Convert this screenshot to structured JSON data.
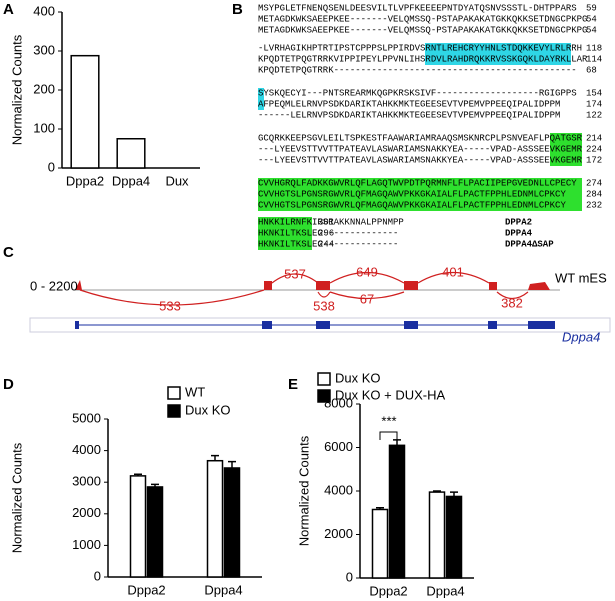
{
  "panel_labels": [
    "A",
    "B",
    "C",
    "D",
    "E"
  ],
  "chart_data": [
    {
      "type": "bar",
      "ylabel": "Normalized Counts",
      "categories": [
        "Dppa2",
        "Dppa4",
        "Dux"
      ],
      "series": [
        {
          "color": "#ffffff",
          "values": [
            288,
            75,
            0
          ]
        }
      ],
      "ylim": [
        0,
        400
      ],
      "yticks": [
        0,
        100,
        200,
        300,
        400
      ]
    },
    {
      "type": "bar",
      "ylabel": "Normalized Counts",
      "categories": [
        "Dppa2",
        "Dppa4"
      ],
      "series": [
        {
          "name": "WT",
          "color": "#ffffff",
          "values": [
            3200,
            3680
          ],
          "errors": [
            50,
            160
          ]
        },
        {
          "name": "Dux KO",
          "color": "#000000",
          "values": [
            2850,
            3450
          ],
          "errors": [
            80,
            200
          ]
        }
      ],
      "ylim": [
        0,
        5000
      ],
      "yticks": [
        0,
        1000,
        2000,
        3000,
        4000,
        5000
      ],
      "legend": "top-right"
    },
    {
      "type": "bar",
      "ylabel": "Normalized Counts",
      "categories": [
        "Dppa2",
        "Dppa4"
      ],
      "series": [
        {
          "name": "Dux KO",
          "color": "#ffffff",
          "values": [
            3150,
            3950
          ],
          "errors": [
            80,
            50
          ]
        },
        {
          "name": "Dux KO + DUX-HA",
          "color": "#000000",
          "values": [
            6100,
            3750
          ],
          "errors": [
            250,
            200
          ]
        }
      ],
      "ylim": [
        0,
        8000
      ],
      "yticks": [
        0,
        2000,
        4000,
        6000,
        8000
      ],
      "legend": "top-left",
      "annotation": "***"
    }
  ],
  "alignment": {
    "blocks": [
      [
        {
          "seq": "MSYPGLETFNENQSENLDEESVILTLVPFKEEEEPNTDYATQSNVSSSTL-DHTPPARS",
          "end": "59"
        },
        {
          "seq": "METAGDKWKSAEEPKEE-------VELQMSSQ-PSTAPAKAKATGKKQKKSETDNGCPKPG",
          "end": "54"
        },
        {
          "seq": "METAGDKWKSAEEPKEE-------VELQMSSQ-PSTAPAKAKATGKKQKKSETDNGCPKPG",
          "end": "54"
        }
      ],
      [
        {
          "seq": "-LVRHAGIKHPTRTIPSTCPPPSLPPIRDVSRNTLREHCRYYHNLSTDQKKEVYLRLRRH",
          "end": "118"
        },
        {
          "seq": "KPQDTETPQGTRRKVIPPIPEYLPPVNLIHSRDVLRAHDRQKKRVSSKGQKLDAYRKLLAR",
          "end": "114"
        },
        {
          "seq": "KPQDTETPQGTRRK---------------------------------------------",
          "end": "68"
        }
      ],
      [
        {
          "seq": "SYSKQECYI---PNTSREARMKQGPKRSKSIVF-------------------RGIGPPS",
          "end": "154"
        },
        {
          "seq": "AFPEQMLELRNVPSDKDARIKTAHKKMKTEGEESEVTVPEMVPPEEQIPALIDPPM",
          "end": "174"
        },
        {
          "seq": "------LELRNVPSDKDARIKTAHKKMKTEGEESEVTVPEMVPPEEQIPALIDPPM",
          "end": "122"
        }
      ],
      [
        {
          "seq": "GCQRKKEEPSGVLEILTSPKESTFAAWARIAMRAAQSMSKNRCPLPSNVEAFLPQATGSR",
          "end": "214"
        },
        {
          "seq": "---LYEEVSTTVVTTPATEAVLASWARIAMSNAKKYEA-----VPAD-ASSSEEVKGEMR",
          "end": "224"
        },
        {
          "seq": "---LYEEVSTTVVTTPATEAVLASWARIAMSNAKKYEA-----VPAD-ASSSEEVKGEMR",
          "end": "172"
        }
      ],
      [
        {
          "seq": "CVVHGRQLFADKKGWVRLQFLAGQTWVPDTPQRMNFLFLPACIIPEPGVEDNLLCPECY",
          "end": "274"
        },
        {
          "seq": "CVVHGTSLPGNSRGWVRLQFMAGQAWVPKKGKAIALFLPACTFPPHLEDNMLCPKCY",
          "end": "284"
        },
        {
          "seq": "CVVHGTSLPGNSRGWVRLQFMAGQAWVPKKGKAIALFLPACTFPPHLEDNMLCPKCY",
          "end": "232"
        }
      ],
      [
        {
          "seq": "HNKKILRNFKIRSRAKKNNALPPNMPP",
          "end": "301",
          "name": "DPPA2"
        },
        {
          "seq": "HKNKILTKSLEG--------------",
          "end": "296",
          "name": "DPPA4"
        },
        {
          "seq": "HKNKILTKSLEG--------------",
          "end": "244",
          "name": "DPPA4ΔSAP"
        }
      ]
    ]
  },
  "sashimi": {
    "range": "0 - 2200",
    "sample": "WT mES",
    "gene": "Dppa4",
    "junctions": [
      "537",
      "533",
      "649",
      "401",
      "538",
      "67",
      "382"
    ]
  }
}
